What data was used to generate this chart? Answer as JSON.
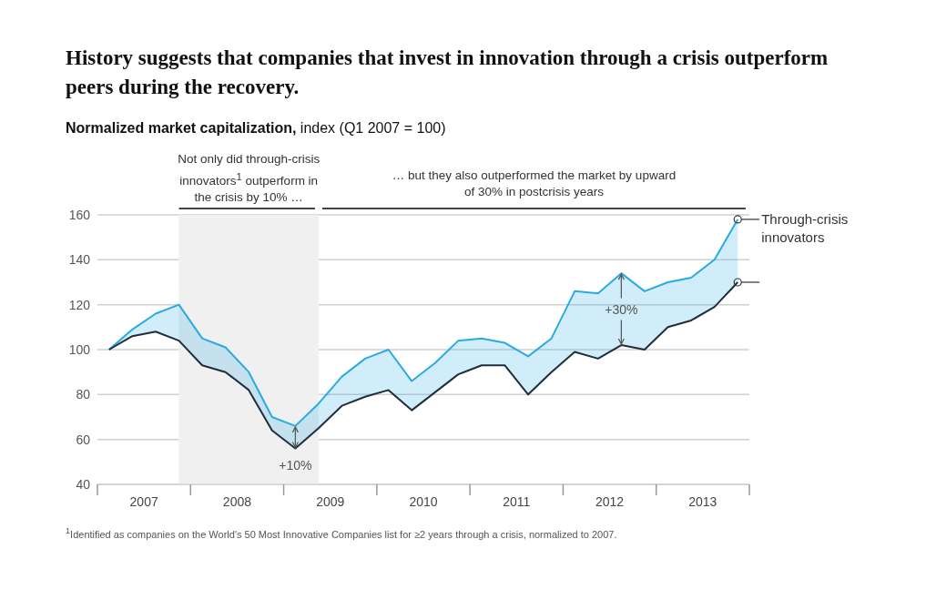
{
  "chart_data": {
    "type": "line",
    "title": "History suggests that companies that invest in innovation through a crisis outperform peers during the recovery.",
    "subtitle": "Normalized market capitalization, index (Q1 2007 = 100)",
    "x": [
      2007.125,
      2007.375,
      2007.625,
      2007.875,
      2008.125,
      2008.375,
      2008.625,
      2008.875,
      2009.125,
      2009.375,
      2009.625,
      2009.875,
      2010.125,
      2010.375,
      2010.625,
      2010.875,
      2011.125,
      2011.375,
      2011.625,
      2011.875,
      2012.125,
      2012.375,
      2012.625,
      2012.875,
      2013.125,
      2013.375,
      2013.625,
      2013.875
    ],
    "series": [
      {
        "name": "Through-crisis innovators",
        "color": "#29abe2",
        "values": [
          100,
          109,
          116,
          120,
          105,
          101,
          90,
          70,
          66,
          76,
          88,
          96,
          100,
          86,
          94,
          104,
          105,
          103,
          97,
          105,
          126,
          125,
          134,
          126,
          130,
          132,
          140,
          158
        ],
        "lower": [
          100,
          106,
          108,
          104,
          93,
          90,
          82,
          64,
          56,
          65,
          75,
          79,
          82,
          73,
          81,
          89,
          93,
          93,
          80,
          90,
          99,
          96,
          102,
          100,
          110,
          113,
          119,
          130
        ],
        "upper": [
          100,
          109,
          116,
          120,
          105,
          101,
          90,
          70,
          66,
          76,
          88,
          96,
          100,
          86,
          94,
          104,
          105,
          103,
          97,
          105,
          126,
          125,
          134,
          126,
          130,
          132,
          140,
          158
        ]
      },
      {
        "color": "#1f2d3d",
        "values": [
          100,
          106,
          108,
          104,
          93,
          90,
          82,
          64,
          56,
          65,
          75,
          79,
          82,
          73,
          81,
          89,
          93,
          93,
          80,
          90,
          99,
          96,
          102,
          100,
          110,
          113,
          119,
          130
        ]
      }
    ],
    "xlim": [
      2007,
      2014
    ],
    "xticks": [
      {
        "value": 2007,
        "label": null
      },
      {
        "value": 2007.5,
        "label": "2007"
      },
      {
        "value": 2008,
        "label": null
      },
      {
        "value": 2008.5,
        "label": "2008"
      },
      {
        "value": 2009,
        "label": null
      },
      {
        "value": 2009.5,
        "label": "2009"
      },
      {
        "value": 2010,
        "label": null
      },
      {
        "value": 2010.5,
        "label": "2010"
      },
      {
        "value": 2011,
        "label": null
      },
      {
        "value": 2011.5,
        "label": "2011"
      },
      {
        "value": 2012,
        "label": null
      },
      {
        "value": 2012.5,
        "label": "2012"
      },
      {
        "value": 2013,
        "label": null
      },
      {
        "value": 2013.5,
        "label": "2013"
      },
      {
        "value": 2014,
        "label": null
      }
    ],
    "ylim": [
      40,
      160
    ],
    "yticks": [
      40,
      60,
      80,
      100,
      120,
      140,
      160
    ],
    "grid": "y",
    "legend": "right",
    "bands": [
      {
        "axis": "x",
        "from": 2007.875,
        "to": 2009.375,
        "color": "#f0f0f0"
      }
    ],
    "annotations": [
      "Not only did through-crisis innovators$^{1}$ outperform in the crisis by 10% …",
      "… but they also outperformed the market by upward of 30% in postcrisis years",
      {
        "text": "+10%",
        "x": 2009.125,
        "y": 56
      },
      {
        "text": "+30%",
        "x": 2012.625,
        "y": 102
      },
      "$^{1}$Identified as companies on the World's 50 Most Innovative Companies list for ≥2 years through a crisis, normalized to 2007."
    ]
  }
}
